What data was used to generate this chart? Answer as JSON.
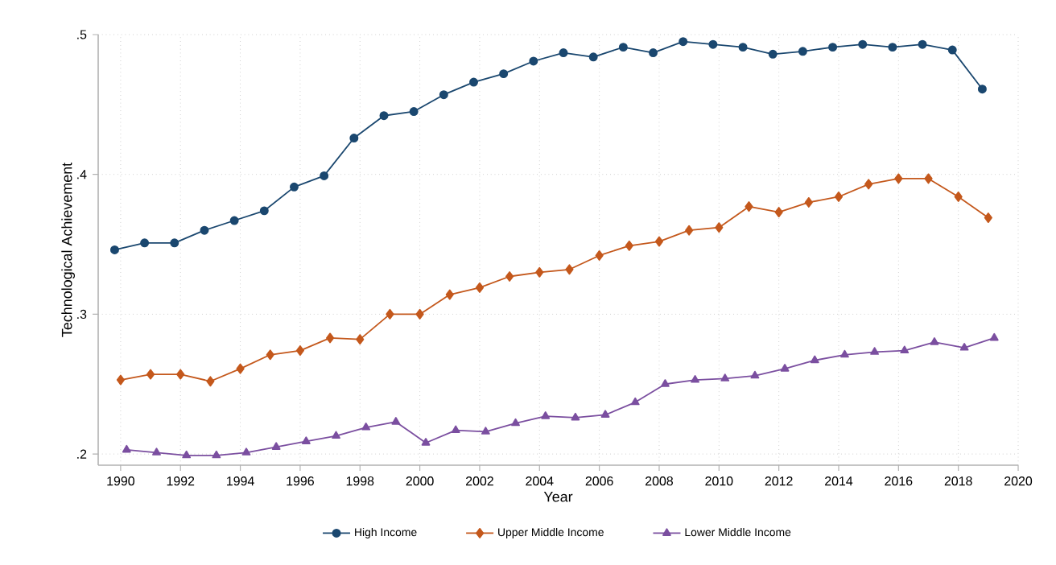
{
  "chart_data": {
    "type": "line",
    "xlabel": "Year",
    "ylabel": "Technological Achievement",
    "xlim": [
      1989.25,
      2020
    ],
    "ylim": [
      0.192,
      0.5
    ],
    "xticks": [
      1990,
      1992,
      1994,
      1996,
      1998,
      2000,
      2002,
      2004,
      2006,
      2008,
      2010,
      2012,
      2014,
      2016,
      2018,
      2020
    ],
    "yticks": [
      {
        "value": 0.2,
        "label": ".2"
      },
      {
        "value": 0.3,
        "label": ".3"
      },
      {
        "value": 0.4,
        "label": ".4"
      },
      {
        "value": 0.5,
        "label": ".5"
      }
    ],
    "grid": true,
    "legend": "bottom",
    "line_style": "solid",
    "series": [
      {
        "name": "High Income",
        "color": "#1a476f",
        "marker": "circle",
        "x": [
          1989.8,
          1990.8,
          1991.8,
          1992.8,
          1993.8,
          1994.8,
          1995.8,
          1996.8,
          1997.8,
          1998.8,
          1999.8,
          2000.8,
          2001.8,
          2002.8,
          2003.8,
          2004.8,
          2005.8,
          2006.8,
          2007.8,
          2008.8,
          2009.8,
          2010.8,
          2011.8,
          2012.8,
          2013.8,
          2014.8,
          2015.8,
          2016.8,
          2017.8,
          2018.8
        ],
        "values": [
          0.346,
          0.351,
          0.351,
          0.36,
          0.367,
          0.374,
          0.391,
          0.399,
          0.426,
          0.442,
          0.445,
          0.457,
          0.466,
          0.472,
          0.481,
          0.487,
          0.484,
          0.491,
          0.487,
          0.495,
          0.493,
          0.491,
          0.486,
          0.488,
          0.491,
          0.493,
          0.491,
          0.493,
          0.489,
          0.461
        ]
      },
      {
        "name": "Upper Middle Income",
        "color": "#c4581c",
        "marker": "diamond",
        "x": [
          1990,
          1991,
          1992,
          1993,
          1994,
          1995,
          1996,
          1997,
          1998,
          1999,
          2000,
          2001,
          2002,
          2003,
          2004,
          2005,
          2006,
          2007,
          2008,
          2009,
          2010,
          2011,
          2012,
          2013,
          2014,
          2015,
          2016,
          2017,
          2018,
          2019
        ],
        "values": [
          0.253,
          0.257,
          0.257,
          0.252,
          0.261,
          0.271,
          0.274,
          0.283,
          0.282,
          0.3,
          0.3,
          0.314,
          0.319,
          0.327,
          0.33,
          0.332,
          0.342,
          0.349,
          0.352,
          0.36,
          0.362,
          0.377,
          0.373,
          0.38,
          0.384,
          0.393,
          0.397,
          0.397,
          0.384,
          0.369
        ]
      },
      {
        "name": "Lower Middle Income",
        "color": "#7b4fa0",
        "marker": "triangle",
        "x": [
          1990.2,
          1991.2,
          1992.2,
          1993.2,
          1994.2,
          1995.2,
          1996.2,
          1997.2,
          1998.2,
          1999.2,
          2000.2,
          2001.2,
          2002.2,
          2003.2,
          2004.2,
          2005.2,
          2006.2,
          2007.2,
          2008.2,
          2009.2,
          2010.2,
          2011.2,
          2012.2,
          2013.2,
          2014.2,
          2015.2,
          2016.2,
          2017.2,
          2018.2,
          2019.2
        ],
        "values": [
          0.203,
          0.201,
          0.199,
          0.199,
          0.201,
          0.205,
          0.209,
          0.213,
          0.219,
          0.223,
          0.208,
          0.217,
          0.216,
          0.222,
          0.227,
          0.226,
          0.228,
          0.237,
          0.25,
          0.253,
          0.254,
          0.256,
          0.261,
          0.267,
          0.271,
          0.273,
          0.274,
          0.28,
          0.276,
          0.283
        ]
      }
    ]
  }
}
